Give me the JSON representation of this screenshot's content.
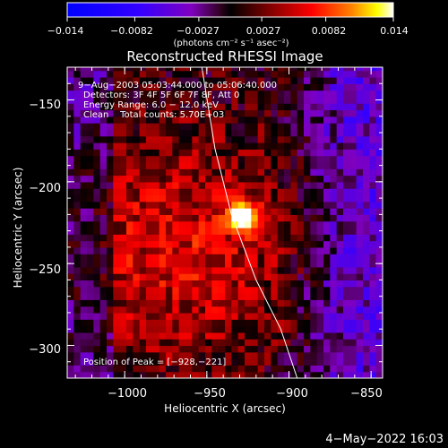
{
  "chart_data": {
    "type": "heatmap",
    "title": "Reconstructed RHESSI Image",
    "xlabel": "Heliocentric X (arcsec)",
    "ylabel": "Heliocentric Y (arcsec)",
    "xlim": [
      -1035,
      -843
    ],
    "ylim": [
      -320,
      -130
    ],
    "xticks": [
      -1000,
      -950,
      -900,
      -850
    ],
    "xtick_labels": [
      "−1000",
      "−950",
      "−900",
      "−850"
    ],
    "yticks": [
      -150,
      -200,
      -250,
      -300
    ],
    "ytick_labels": [
      "−150",
      "−200",
      "−250",
      "−300"
    ],
    "colorbar": {
      "range": [
        -0.014,
        0.014
      ],
      "tick_labels": [
        "−0.014",
        "−0.0082",
        "−0.0027",
        "0.0027",
        "0.0082",
        "0.014"
      ],
      "unit_label": "(photons cm⁻² s⁻¹ asec⁻²)",
      "colors": [
        "#0000ff",
        "#3300ff",
        "#8000c0",
        "#600040",
        "#000000",
        "#800000",
        "#ff0000",
        "#ff8000",
        "#ffff00",
        "#ffffff"
      ]
    },
    "annotations": [
      "9−Aug−2003 05:03:44.000 to 05:06:40.000",
      "Detectors: 3F 4F 5F 6F 7F 8F, Att 0",
      "Energy Range: 6.0 − 12.0 keV",
      "Clean    Total counts: 5.70E+03"
    ],
    "peak_label": "Position of Peak = [−928,−221]",
    "peak": [
      -928,
      -221
    ],
    "limb": [
      [
        -953,
        -130
      ],
      [
        -945,
        -180
      ],
      [
        -935,
        -220
      ],
      [
        -920,
        -260
      ],
      [
        -905,
        -290
      ],
      [
        -895,
        -320
      ]
    ],
    "timestamp": "4−May−2022 16:03"
  }
}
